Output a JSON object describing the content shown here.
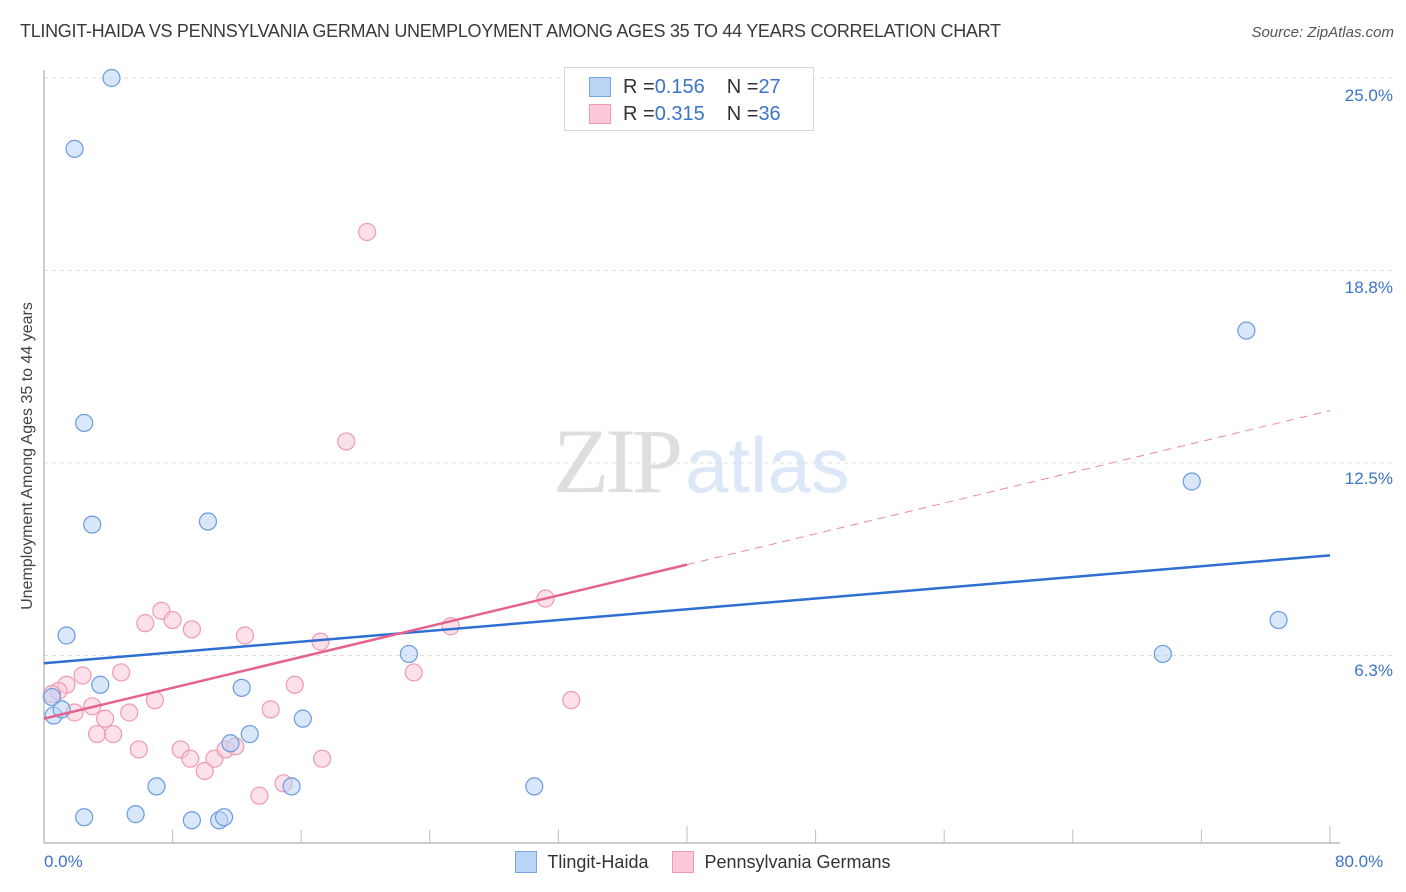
{
  "header": {
    "title": "TLINGIT-HAIDA VS PENNSYLVANIA GERMAN UNEMPLOYMENT AMONG AGES 35 TO 44 YEARS CORRELATION CHART",
    "source": "Source: ZipAtlas.com"
  },
  "watermark": {
    "zip": "ZIP",
    "atlas": "atlas"
  },
  "legend_top": {
    "rows": [
      {
        "r_label": "R = ",
        "r_value": "0.156",
        "n_label": "N = ",
        "n_value": "27",
        "color": "#b9d4f5",
        "border": "#7aa6e0"
      },
      {
        "r_label": "R = ",
        "r_value": "0.315",
        "n_label": "N = ",
        "n_value": "36",
        "color": "#fbc9d8",
        "border": "#ef9ab4"
      }
    ]
  },
  "legend_bottom": {
    "items": [
      {
        "label": "Tlingit-Haida",
        "color": "#b9d4f5",
        "border": "#7aa6e0"
      },
      {
        "label": "Pennsylvania Germans",
        "color": "#fbc9d8",
        "border": "#ef9ab4"
      }
    ]
  },
  "axes": {
    "ylabel": "Unemployment Among Ages 35 to 44 years",
    "yticks": [
      "25.0%",
      "18.8%",
      "12.5%",
      "6.3%"
    ],
    "xticks": [
      "0.0%",
      "80.0%"
    ]
  },
  "chart_data": {
    "type": "scatter",
    "title": "TLINGIT-HAIDA VS PENNSYLVANIA GERMAN UNEMPLOYMENT AMONG AGES 35 TO 44 YEARS CORRELATION CHART",
    "xlabel": "",
    "ylabel": "Unemployment Among Ages 35 to 44 years",
    "xlim": [
      0,
      80
    ],
    "ylim": [
      0,
      25
    ],
    "x_tick_labels": [
      "0.0%",
      "80.0%"
    ],
    "y_tick_labels": [
      "6.3%",
      "12.5%",
      "18.8%",
      "25.0%"
    ],
    "grid": true,
    "legend_position": "top-center and bottom",
    "series": [
      {
        "name": "Tlingit-Haida",
        "color": "#7aa6e0",
        "R": 0.156,
        "N": 27,
        "points": [
          [
            4.2,
            25.0
          ],
          [
            1.9,
            22.7
          ],
          [
            2.5,
            13.8
          ],
          [
            3.0,
            10.5
          ],
          [
            10.2,
            10.6
          ],
          [
            1.4,
            6.9
          ],
          [
            3.5,
            5.3
          ],
          [
            12.3,
            5.2
          ],
          [
            0.5,
            4.9
          ],
          [
            0.6,
            4.3
          ],
          [
            1.1,
            4.5
          ],
          [
            16.1,
            4.2
          ],
          [
            12.8,
            3.7
          ],
          [
            11.6,
            3.4
          ],
          [
            7.0,
            2.0
          ],
          [
            15.4,
            2.0
          ],
          [
            2.5,
            1.0
          ],
          [
            5.7,
            1.1
          ],
          [
            9.2,
            0.9
          ],
          [
            10.9,
            0.9
          ],
          [
            11.2,
            1.0
          ],
          [
            22.7,
            6.3
          ],
          [
            30.5,
            2.0
          ],
          [
            69.6,
            6.3
          ],
          [
            71.4,
            11.9
          ],
          [
            74.8,
            16.8
          ],
          [
            76.8,
            7.4
          ]
        ],
        "trend": {
          "x": [
            0,
            80
          ],
          "y": [
            6.0,
            9.5
          ]
        }
      },
      {
        "name": "Pennsylvania Germans",
        "color": "#ef9ab4",
        "R": 0.315,
        "N": 36,
        "points": [
          [
            20.1,
            20.0
          ],
          [
            18.8,
            13.2
          ],
          [
            31.2,
            8.1
          ],
          [
            25.3,
            7.2
          ],
          [
            17.2,
            6.7
          ],
          [
            23.0,
            5.7
          ],
          [
            32.8,
            4.8
          ],
          [
            7.3,
            7.7
          ],
          [
            8.0,
            7.4
          ],
          [
            6.3,
            7.3
          ],
          [
            9.2,
            7.1
          ],
          [
            12.5,
            6.9
          ],
          [
            2.4,
            5.6
          ],
          [
            4.8,
            5.7
          ],
          [
            1.4,
            5.3
          ],
          [
            0.9,
            5.1
          ],
          [
            0.5,
            5.0
          ],
          [
            3.0,
            4.6
          ],
          [
            6.9,
            4.8
          ],
          [
            1.9,
            4.4
          ],
          [
            5.3,
            4.4
          ],
          [
            3.8,
            4.2
          ],
          [
            15.6,
            5.3
          ],
          [
            14.1,
            4.5
          ],
          [
            3.3,
            3.7
          ],
          [
            4.3,
            3.7
          ],
          [
            5.9,
            3.2
          ],
          [
            8.5,
            3.2
          ],
          [
            9.1,
            2.9
          ],
          [
            10.6,
            2.9
          ],
          [
            11.3,
            3.2
          ],
          [
            11.9,
            3.3
          ],
          [
            10.0,
            2.5
          ],
          [
            17.3,
            2.9
          ],
          [
            13.4,
            1.7
          ],
          [
            14.9,
            2.1
          ]
        ],
        "trend": {
          "x": [
            0,
            40
          ],
          "y": [
            4.2,
            9.2
          ],
          "dashed_extension": {
            "x": [
              40,
              80
            ],
            "y": [
              9.2,
              14.2
            ]
          }
        }
      }
    ]
  }
}
